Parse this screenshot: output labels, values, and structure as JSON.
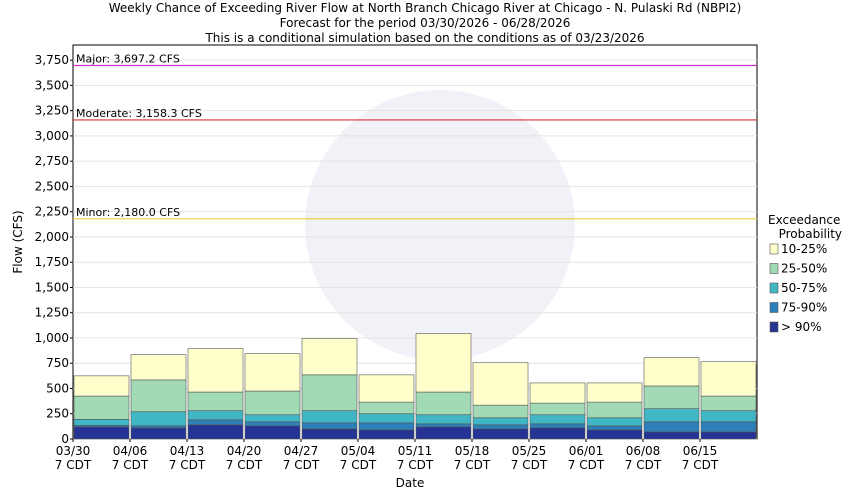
{
  "chart_data": {
    "type": "bar",
    "title": [
      "Weekly Chance of Exceeding River Flow at North Branch Chicago River at Chicago - N. Pulaski Rd (NBPI2)",
      "Forecast for the period 03/30/2026 - 06/28/2026",
      "This is a conditional simulation based on the conditions as of 03/23/2026"
    ],
    "x_label": "Date",
    "y_label": "Flow (CFS)",
    "categories": [
      "03/30",
      "04/06",
      "04/13",
      "04/20",
      "04/27",
      "05/04",
      "05/11",
      "05/18",
      "05/25",
      "06/01",
      "06/08",
      "06/15"
    ],
    "category_sublabel": "7 CDT",
    "stacked": true,
    "grid": true,
    "legend_title": [
      "Exceedance",
      "Probability"
    ],
    "series": [
      {
        "name": "> 90%",
        "color": "#253494",
        "values": [
          120,
          110,
          140,
          130,
          100,
          90,
          120,
          100,
          110,
          90,
          70,
          70
        ]
      },
      {
        "name": "75-90%",
        "color": "#2c7fb8",
        "values": [
          15,
          20,
          50,
          40,
          60,
          70,
          30,
          40,
          40,
          40,
          100,
          100
        ]
      },
      {
        "name": "50-75%",
        "color": "#41b6c4",
        "values": [
          60,
          140,
          90,
          70,
          120,
          90,
          90,
          70,
          90,
          80,
          130,
          110
        ]
      },
      {
        "name": "25-50%",
        "color": "#a1dab4",
        "values": [
          230,
          315,
          185,
          235,
          355,
          115,
          225,
          125,
          115,
          155,
          225,
          145
        ]
      },
      {
        "name": "10-25%",
        "color": "#ffffcc",
        "values": [
          200,
          250,
          430,
          370,
          360,
          270,
          580,
          420,
          200,
          190,
          280,
          340
        ]
      }
    ],
    "thresholds": [
      {
        "value": 3697.2,
        "label": "Major: 3,697.2 CFS",
        "color": "#cc33cc"
      },
      {
        "value": 3158.3,
        "label": "Moderate: 3,158.3 CFS",
        "color": "#dd3333"
      },
      {
        "value": 2180.0,
        "label": "Minor: 2,180.0 CFS",
        "color": "#e6d44a"
      }
    ],
    "ylim": [
      0,
      3900
    ],
    "yticks": [
      0,
      250,
      500,
      750,
      {
        "value": 1000,
        "label": "1,000"
      },
      {
        "value": 1250,
        "label": "1,250"
      },
      {
        "value": 1500,
        "label": "1,500"
      },
      {
        "value": 1750,
        "label": "1,750"
      },
      {
        "value": 2000,
        "label": "2,000"
      },
      {
        "value": 2250,
        "label": "2,250"
      },
      {
        "value": 2500,
        "label": "2,500"
      },
      {
        "value": 2750,
        "label": "2,750"
      },
      {
        "value": 3000,
        "label": "3,000"
      },
      {
        "value": 3250,
        "label": "3,250"
      },
      {
        "value": 3500,
        "label": "3,500"
      },
      {
        "value": 3750,
        "label": "3,750"
      }
    ]
  }
}
